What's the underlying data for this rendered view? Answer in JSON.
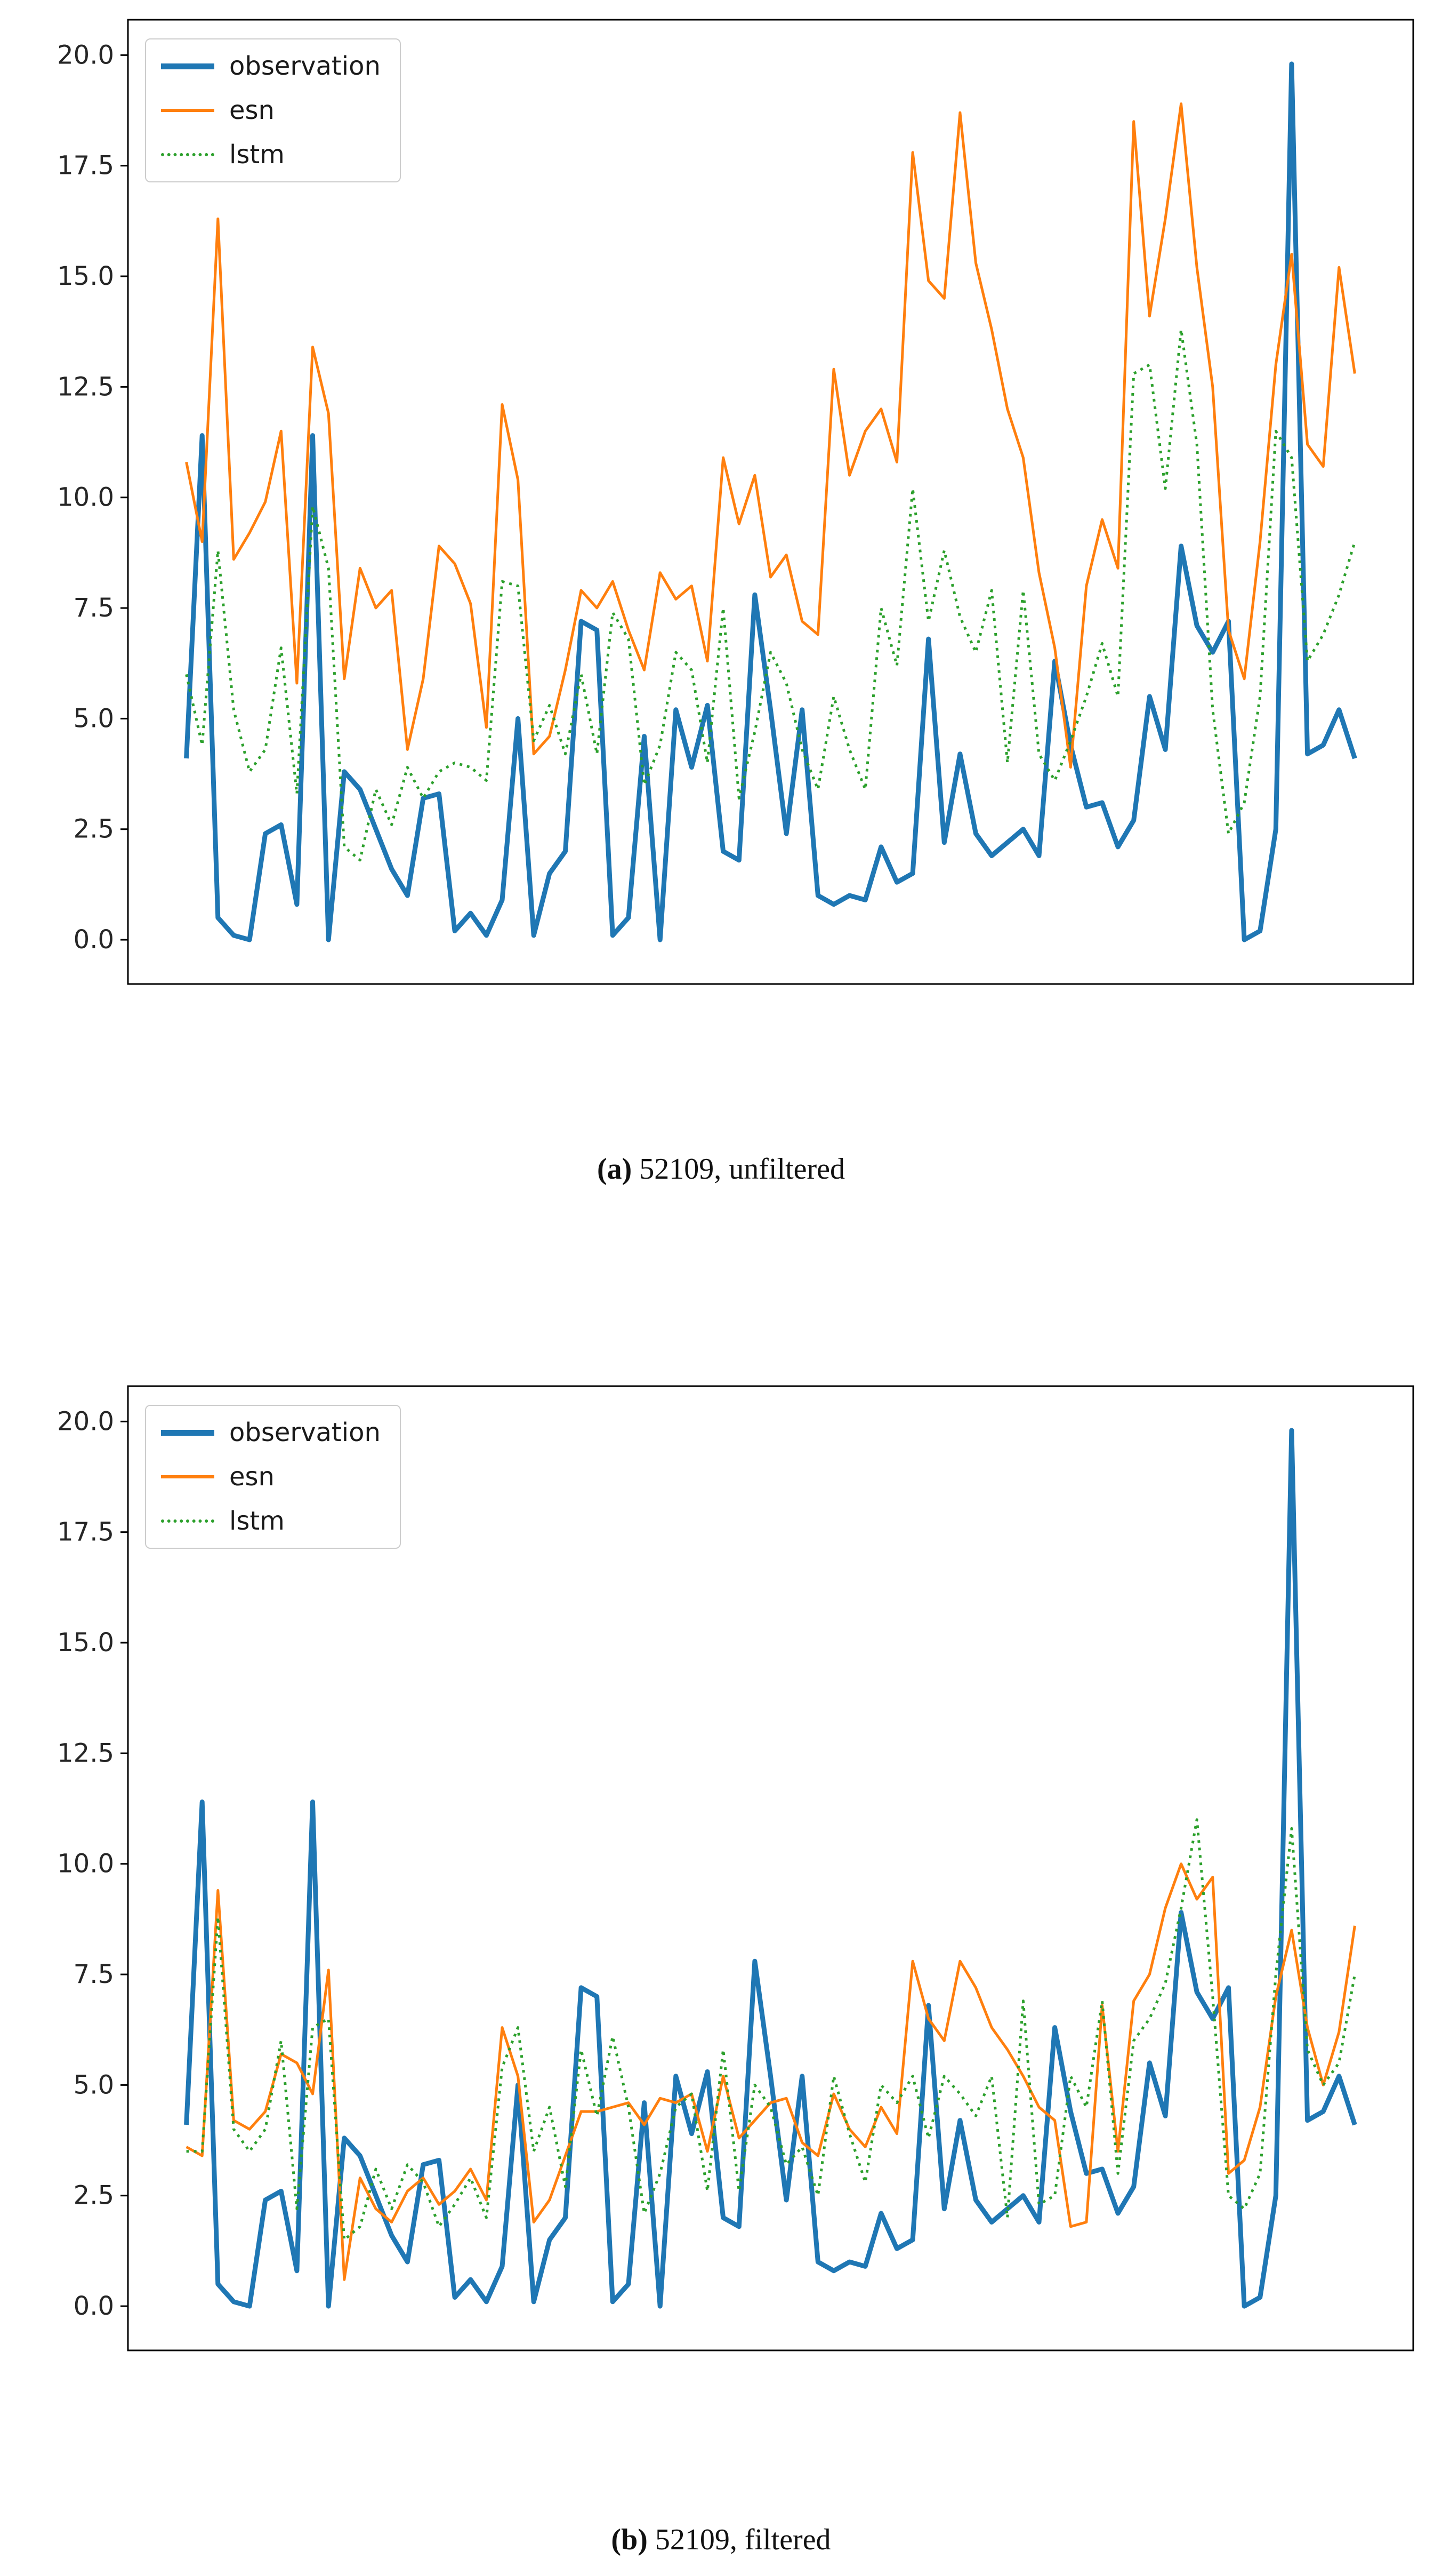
{
  "page": {
    "background": "#ffffff"
  },
  "palette": {
    "observation": "#1f77b4",
    "esn": "#ff7f0e",
    "lstm": "#2ca02c",
    "axis": "#000000",
    "tick_text": "#262626",
    "legend_border": "#cccccc"
  },
  "chart_data": [
    {
      "type": "line",
      "caption_label": "(a)",
      "caption_text": " 52109, unfiltered",
      "ylim": [
        -1.0,
        20.8
      ],
      "xlim": [
        -3.7,
        77.7
      ],
      "yticks": [
        "0.0",
        "2.5",
        "5.0",
        "7.5",
        "10.0",
        "12.5",
        "15.0",
        "17.5",
        "20.0"
      ],
      "xticks": [],
      "grid": false,
      "legend_position": "upper-left",
      "series": [
        {
          "name": "observation",
          "color": "#1f77b4",
          "style": "solid",
          "width": 9,
          "values": [
            4.1,
            11.4,
            0.5,
            0.1,
            0.0,
            2.4,
            2.6,
            0.8,
            11.4,
            0.0,
            3.8,
            3.4,
            2.5,
            1.6,
            1.0,
            3.2,
            3.3,
            0.2,
            0.6,
            0.1,
            0.9,
            5.0,
            0.1,
            1.5,
            2.0,
            7.2,
            7.0,
            0.1,
            0.5,
            4.6,
            0.0,
            5.2,
            3.9,
            5.3,
            2.0,
            1.8,
            7.8,
            5.2,
            2.4,
            5.2,
            1.0,
            0.8,
            1.0,
            0.9,
            2.1,
            1.3,
            1.5,
            6.8,
            2.2,
            4.2,
            2.4,
            1.9,
            2.2,
            2.5,
            1.9,
            6.3,
            4.4,
            3.0,
            3.1,
            2.1,
            2.7,
            5.5,
            4.3,
            8.9,
            7.1,
            6.5,
            7.2,
            0.0,
            0.2,
            2.5,
            19.8,
            4.2,
            4.4,
            5.2,
            4.1
          ]
        },
        {
          "name": "esn",
          "color": "#ff7f0e",
          "style": "solid",
          "width": 5,
          "values": [
            10.8,
            9.0,
            16.3,
            8.6,
            9.2,
            9.9,
            11.5,
            5.8,
            13.4,
            11.9,
            5.9,
            8.4,
            7.5,
            7.9,
            4.3,
            5.9,
            8.9,
            8.5,
            7.6,
            4.8,
            12.1,
            10.4,
            4.2,
            4.6,
            6.1,
            7.9,
            7.5,
            8.1,
            7.0,
            6.1,
            8.3,
            7.7,
            8.0,
            6.3,
            10.9,
            9.4,
            10.5,
            8.2,
            8.7,
            7.2,
            6.9,
            12.9,
            10.5,
            11.5,
            12.0,
            10.8,
            17.8,
            14.9,
            14.5,
            18.7,
            15.3,
            13.8,
            12.0,
            10.9,
            8.3,
            6.6,
            3.9,
            8.0,
            9.5,
            8.4,
            18.5,
            14.1,
            16.3,
            18.9,
            15.2,
            12.5,
            7.0,
            5.9,
            9.0,
            13.0,
            15.5,
            11.2,
            10.7,
            15.2,
            12.8
          ]
        },
        {
          "name": "lstm",
          "color": "#2ca02c",
          "style": "dotted",
          "width": 5,
          "values": [
            6.0,
            4.4,
            8.8,
            5.2,
            3.8,
            4.3,
            6.6,
            3.3,
            9.8,
            8.4,
            2.1,
            1.8,
            3.4,
            2.6,
            3.9,
            3.2,
            3.8,
            4.0,
            3.9,
            3.6,
            8.1,
            8.0,
            4.5,
            5.3,
            4.2,
            6.0,
            4.2,
            7.4,
            6.8,
            3.5,
            4.4,
            6.5,
            6.1,
            4.0,
            7.5,
            3.2,
            4.7,
            6.5,
            5.8,
            4.3,
            3.4,
            5.5,
            4.3,
            3.4,
            7.5,
            6.2,
            10.2,
            7.2,
            8.8,
            7.3,
            6.5,
            7.9,
            4.0,
            7.9,
            4.2,
            3.6,
            4.5,
            5.5,
            6.7,
            5.5,
            12.8,
            13.0,
            10.2,
            13.8,
            11.2,
            5.2,
            2.4,
            3.1,
            5.5,
            11.5,
            10.9,
            6.3,
            6.9,
            7.8,
            9.0
          ]
        }
      ]
    },
    {
      "type": "line",
      "caption_label": "(b)",
      "caption_text": " 52109, filtered",
      "ylim": [
        -1.0,
        20.8
      ],
      "xlim": [
        -3.7,
        77.7
      ],
      "yticks": [
        "0.0",
        "2.5",
        "5.0",
        "7.5",
        "10.0",
        "12.5",
        "15.0",
        "17.5",
        "20.0"
      ],
      "xticks": [],
      "grid": false,
      "legend_position": "upper-left",
      "series": [
        {
          "name": "observation",
          "color": "#1f77b4",
          "style": "solid",
          "width": 9,
          "values": [
            4.1,
            11.4,
            0.5,
            0.1,
            0.0,
            2.4,
            2.6,
            0.8,
            11.4,
            0.0,
            3.8,
            3.4,
            2.5,
            1.6,
            1.0,
            3.2,
            3.3,
            0.2,
            0.6,
            0.1,
            0.9,
            5.0,
            0.1,
            1.5,
            2.0,
            7.2,
            7.0,
            0.1,
            0.5,
            4.6,
            0.0,
            5.2,
            3.9,
            5.3,
            2.0,
            1.8,
            7.8,
            5.2,
            2.4,
            5.2,
            1.0,
            0.8,
            1.0,
            0.9,
            2.1,
            1.3,
            1.5,
            6.8,
            2.2,
            4.2,
            2.4,
            1.9,
            2.2,
            2.5,
            1.9,
            6.3,
            4.4,
            3.0,
            3.1,
            2.1,
            2.7,
            5.5,
            4.3,
            8.9,
            7.1,
            6.5,
            7.2,
            0.0,
            0.2,
            2.5,
            19.8,
            4.2,
            4.4,
            5.2,
            4.1
          ]
        },
        {
          "name": "esn",
          "color": "#ff7f0e",
          "style": "solid",
          "width": 5,
          "values": [
            3.6,
            3.4,
            9.4,
            4.2,
            4.0,
            4.4,
            5.7,
            5.5,
            4.8,
            7.6,
            0.6,
            2.9,
            2.2,
            1.9,
            2.6,
            2.9,
            2.3,
            2.6,
            3.1,
            2.4,
            6.3,
            5.2,
            1.9,
            2.4,
            3.4,
            4.4,
            4.4,
            4.5,
            4.6,
            4.1,
            4.7,
            4.6,
            4.8,
            3.5,
            5.2,
            3.8,
            4.2,
            4.6,
            4.7,
            3.7,
            3.4,
            4.8,
            4.0,
            3.6,
            4.5,
            3.9,
            7.8,
            6.5,
            6.0,
            7.8,
            7.2,
            6.3,
            5.8,
            5.2,
            4.5,
            4.2,
            1.8,
            1.9,
            6.8,
            3.5,
            6.9,
            7.5,
            9.0,
            10.0,
            9.2,
            9.7,
            3.0,
            3.3,
            4.5,
            7.0,
            8.5,
            6.3,
            5.0,
            6.2,
            8.6
          ]
        },
        {
          "name": "lstm",
          "color": "#2ca02c",
          "style": "dotted",
          "width": 5,
          "values": [
            3.5,
            3.5,
            8.8,
            4.0,
            3.5,
            4.0,
            6.0,
            2.2,
            6.3,
            6.5,
            1.5,
            1.8,
            3.1,
            2.2,
            3.2,
            2.8,
            1.8,
            2.3,
            2.9,
            2.0,
            5.4,
            6.3,
            3.5,
            4.5,
            2.7,
            5.8,
            4.3,
            6.1,
            4.5,
            2.1,
            3.0,
            4.5,
            4.8,
            2.6,
            5.8,
            2.6,
            5.0,
            4.5,
            3.2,
            3.6,
            2.5,
            5.2,
            3.9,
            2.8,
            5.0,
            4.6,
            5.2,
            3.8,
            5.2,
            4.8,
            4.3,
            5.2,
            2.0,
            6.9,
            2.3,
            2.5,
            5.2,
            4.5,
            6.9,
            3.0,
            6.0,
            6.5,
            7.3,
            9.0,
            11.0,
            7.0,
            2.5,
            2.2,
            3.0,
            7.5,
            10.8,
            5.8,
            5.0,
            5.5,
            7.5
          ]
        }
      ]
    }
  ]
}
